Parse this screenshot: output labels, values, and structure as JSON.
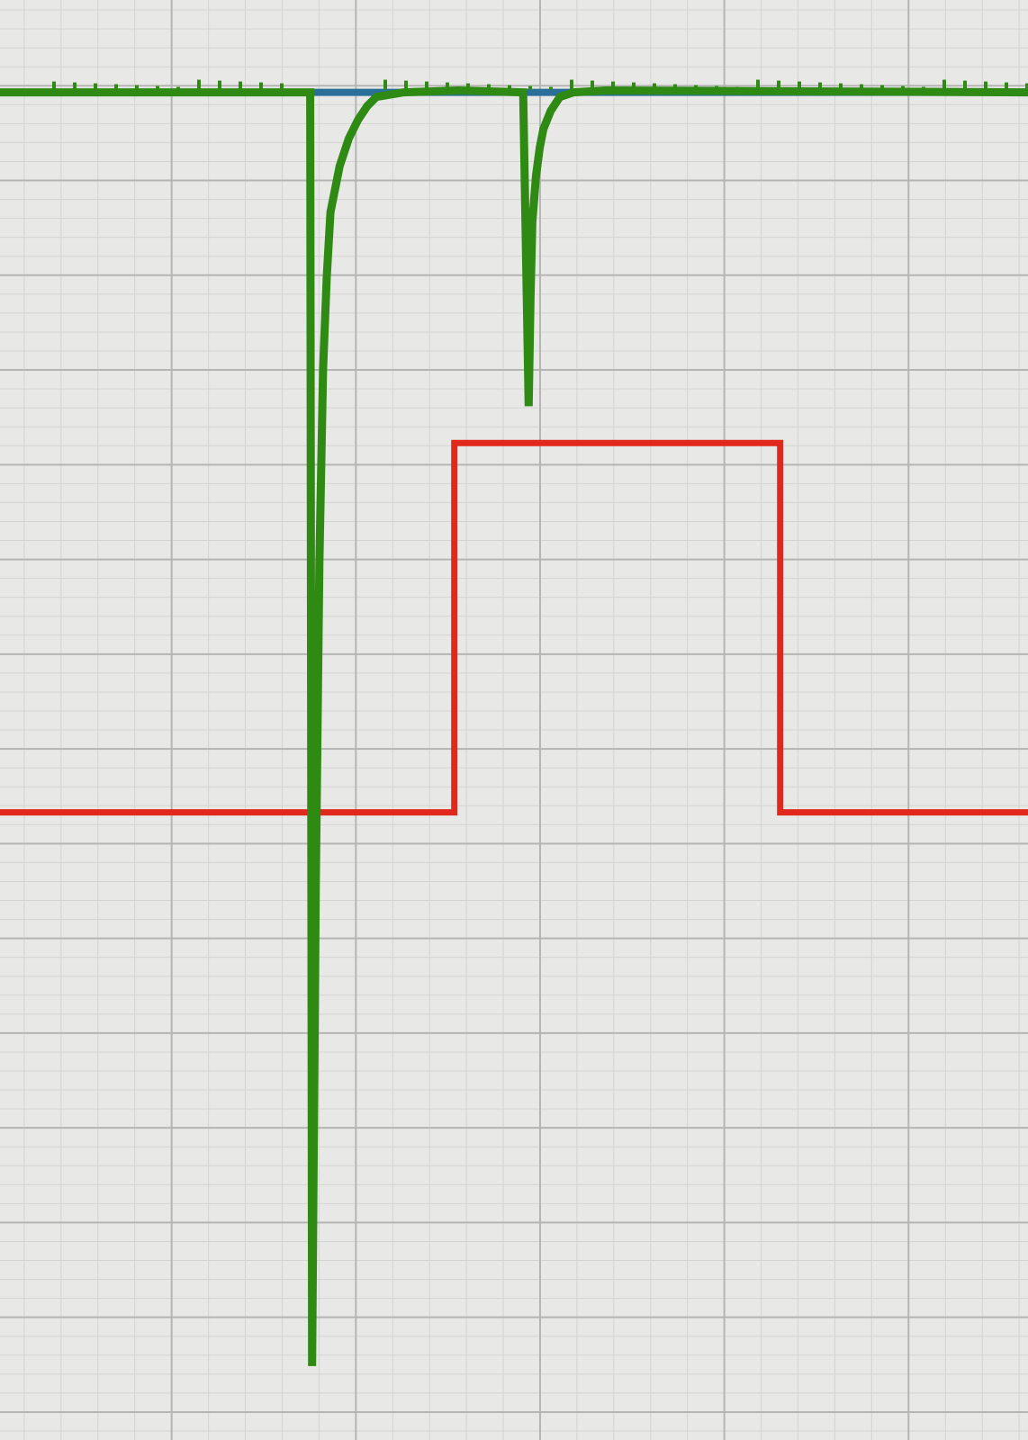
{
  "chart_data": {
    "type": "line",
    "grid": true,
    "grid_minor": true,
    "x_major_divisions": 5.58,
    "y_major_divisions": 15.2,
    "xlim": [
      0,
      11.2
    ],
    "ylim": [
      0,
      15.6
    ],
    "series": [
      {
        "color": "#2a6f9a",
        "x": [
          0,
          11.2
        ],
        "y": [
          14.6,
          14.6
        ]
      },
      {
        "color": "#2f8a14",
        "x": [
          0.0,
          3.38,
          3.4,
          3.44,
          3.48,
          3.52,
          3.56,
          3.6,
          3.7,
          3.8,
          3.9,
          4.0,
          4.1,
          4.4,
          5.0,
          5.7,
          5.76,
          5.78,
          5.8,
          5.84,
          5.88,
          5.92,
          6.0,
          6.1,
          6.25,
          6.6,
          11.2
        ],
        "y": [
          14.6,
          14.6,
          0.8,
          6.0,
          9.5,
          11.6,
          12.6,
          13.3,
          13.8,
          14.1,
          14.3,
          14.45,
          14.55,
          14.6,
          14.62,
          14.6,
          11.2,
          12.4,
          13.2,
          13.7,
          14.0,
          14.2,
          14.4,
          14.55,
          14.6,
          14.62,
          14.6
        ]
      },
      {
        "color": "#e0281c",
        "x": [
          0.0,
          4.95,
          4.95,
          8.5,
          8.5,
          11.2
        ],
        "y": [
          6.8,
          6.8,
          10.8,
          10.8,
          6.8,
          6.8
        ]
      }
    ]
  },
  "colors": {
    "background": "#e8e8e6",
    "grid_major": "#b5b5b3",
    "grid_minor": "#d4d4d2",
    "baseline": "#2a6f9a",
    "signal": "#2f8a14",
    "pulse": "#e0281c"
  }
}
